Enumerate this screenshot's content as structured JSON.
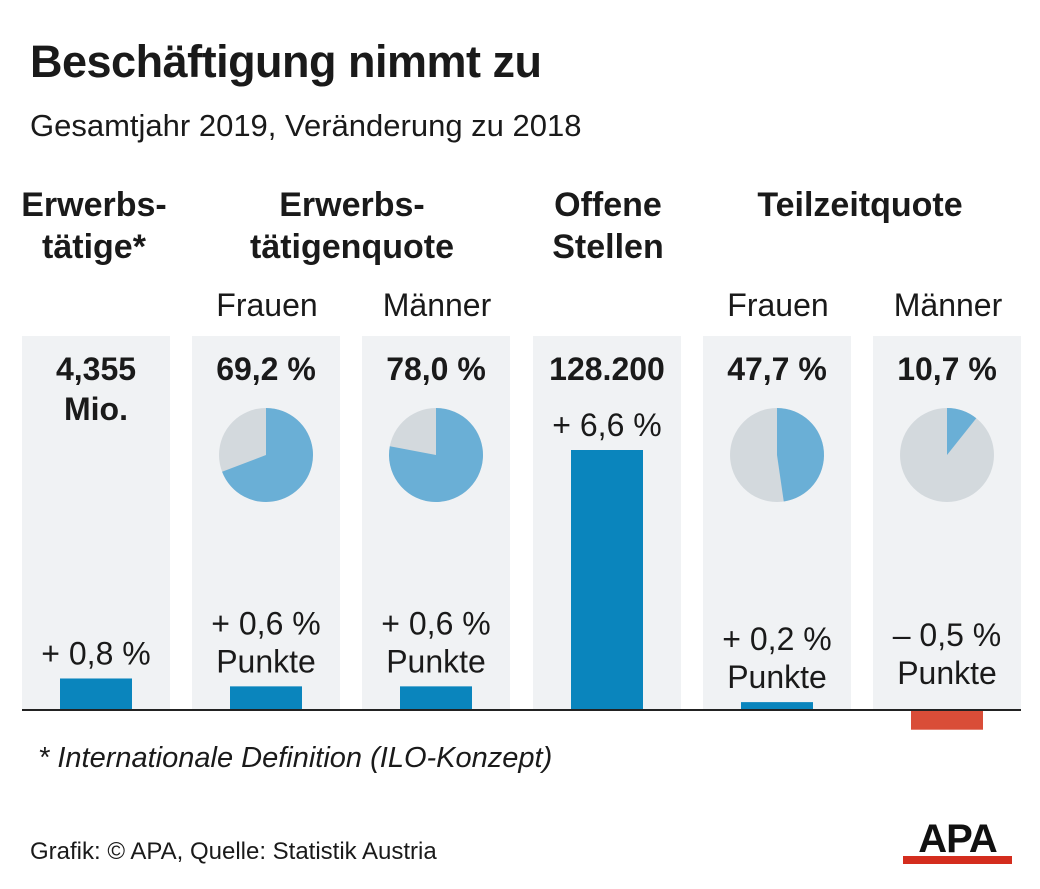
{
  "title": "Beschäftigung nimmt zu",
  "subtitle": "Gesamtjahr 2019, Veränderung zu 2018",
  "columns": {
    "erwerbstaetige": {
      "header": "Erwerbs-\ntätige*"
    },
    "quote": {
      "header": "Erwerbs-\ntätigenquote"
    },
    "stellen": {
      "header": "Offene\nStellen"
    },
    "teilzeit": {
      "header": "Teilzeitquote"
    }
  },
  "subheaders": {
    "frauen": "Frauen",
    "maenner": "Männer"
  },
  "chart_data": {
    "type": "bar",
    "categories": [
      "Erwerbstätige* (Gesamt)",
      "Erwerbstätigenquote Frauen",
      "Erwerbstätigenquote Männer",
      "Offene Stellen",
      "Teilzeitquote Frauen",
      "Teilzeitquote Männer"
    ],
    "levels": [
      "4,355 Mio.",
      "69,2 %",
      "78,0 %",
      "128.200",
      "47,7 %",
      "10,7 %"
    ],
    "pie_shares": [
      null,
      69.2,
      78.0,
      null,
      47.7,
      10.7
    ],
    "changes": [
      0.8,
      0.6,
      0.6,
      6.6,
      0.2,
      -0.5
    ],
    "change_labels": [
      "+ 0,8 %",
      "+ 0,6 %\nPunkte",
      "+ 0,6 %\nPunkte",
      "+ 6,6 %",
      "+ 0,2 %\nPunkte",
      "– 0,5 %\nPunkte"
    ],
    "colors": {
      "positive": "#0a85bd",
      "negative": "#d94d38",
      "pie_fill": "#6aafd6",
      "pie_rest": "#d3d9dd",
      "panel": "#f0f2f4"
    }
  },
  "footnote": "* Internationale Definition (ILO-Konzept)",
  "source": "Grafik: © APA, Quelle: Statistik Austria",
  "logo": "APA"
}
